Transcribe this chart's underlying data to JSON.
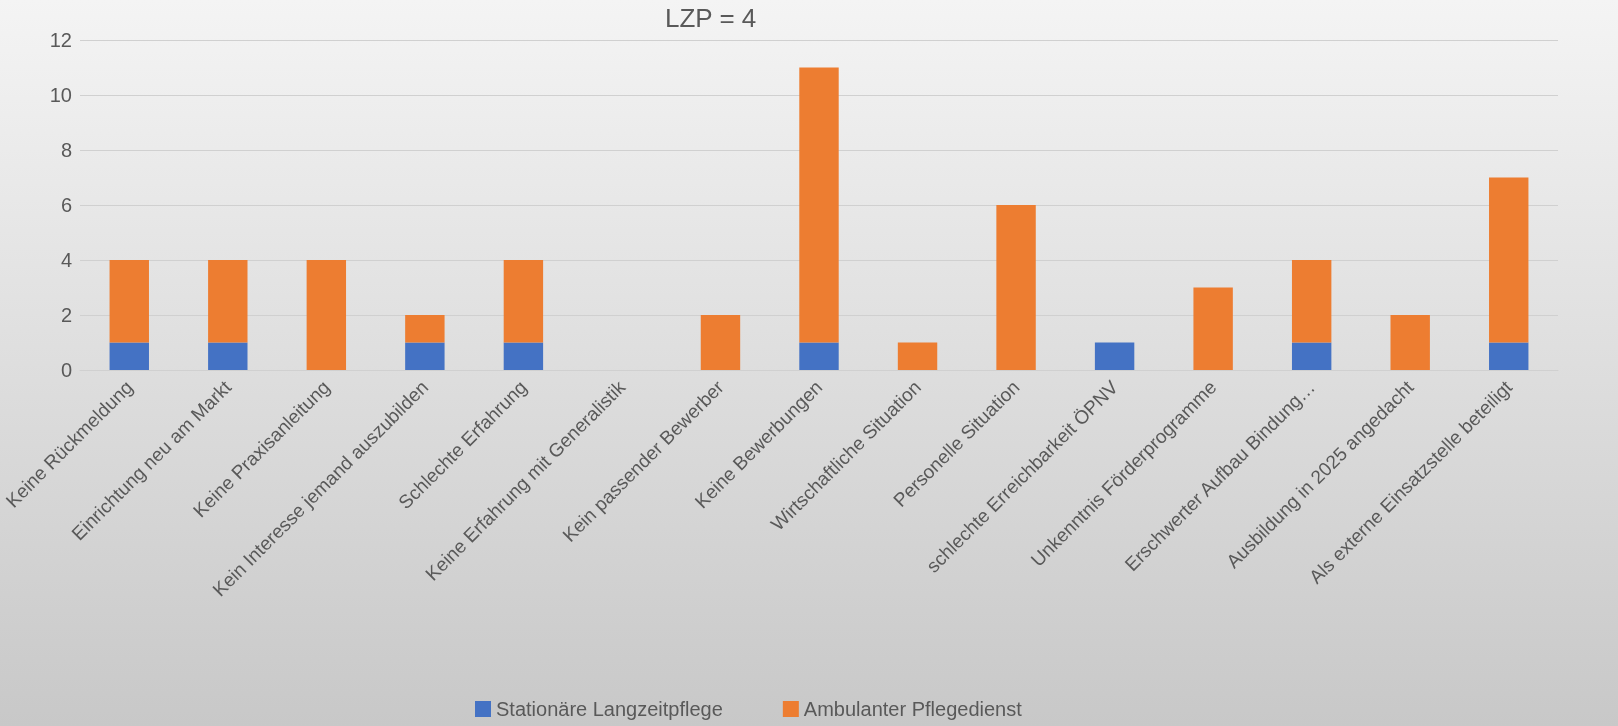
{
  "chart_data": {
    "type": "bar",
    "title": "LZP = 4",
    "stacked": true,
    "categories": [
      "Keine Rückmeldung",
      "Einrichtung neu am Markt",
      "Keine Praxisanleitung",
      "Kein Interesse jemand auszubilden",
      "Schlechte Erfahrung",
      "Keine Erfahrung mit Generalistik",
      "Kein passender Bewerber",
      "Keine Bewerbungen",
      "Wirtschaftliche Situation",
      "Personelle Situation",
      "schlechte Erreichbarkeit ÖPNV",
      "Unkenntnis Förderprogramme",
      "Erschwerter Aufbau Bindung…",
      "Ausbildung in 2025 angedacht",
      "Als externe Einsatzstelle beteiligt"
    ],
    "series": [
      {
        "name": "Stationäre Langzeitpflege",
        "color": "#4472c4",
        "values": [
          1,
          1,
          0,
          1,
          1,
          0,
          0,
          1,
          0,
          0,
          1,
          0,
          1,
          0,
          1
        ]
      },
      {
        "name": "Ambulanter Pflegedienst",
        "color": "#ed7d31",
        "values": [
          3,
          3,
          4,
          1,
          3,
          0,
          2,
          10,
          1,
          6,
          0,
          3,
          3,
          2,
          6
        ]
      }
    ],
    "ylim": [
      0,
      12
    ],
    "yticks": [
      0,
      2,
      4,
      6,
      8,
      10,
      12
    ],
    "grid": "y",
    "legend": "bottom"
  }
}
